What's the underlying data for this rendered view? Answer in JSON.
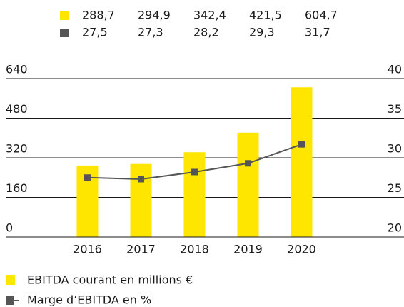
{
  "chart_data": {
    "type": "bar_line",
    "categories": [
      "2016",
      "2017",
      "2018",
      "2019",
      "2020"
    ],
    "series": [
      {
        "name": "EBITDA courant en millions €",
        "color": "#ffe600",
        "type": "bar",
        "values": [
          288.7,
          294.9,
          342.4,
          421.5,
          604.7
        ],
        "value_labels": [
          "288,7",
          "294,9",
          "342,4",
          "421,5",
          "604,7"
        ]
      },
      {
        "name": "Marge d’EBITDA en %",
        "color": "#555555",
        "type": "line",
        "axis": "y2",
        "values": [
          27.5,
          27.3,
          28.2,
          29.3,
          31.7
        ],
        "value_labels": [
          "27,5",
          "27,3",
          "28,2",
          "29,3",
          "31,7"
        ]
      }
    ],
    "ylim": [
      0,
      640
    ],
    "yticks": [
      0,
      160,
      320,
      480,
      640
    ],
    "y2lim": [
      20,
      40
    ],
    "y2ticks": [
      20,
      25,
      30,
      35,
      40
    ],
    "grid": true
  }
}
